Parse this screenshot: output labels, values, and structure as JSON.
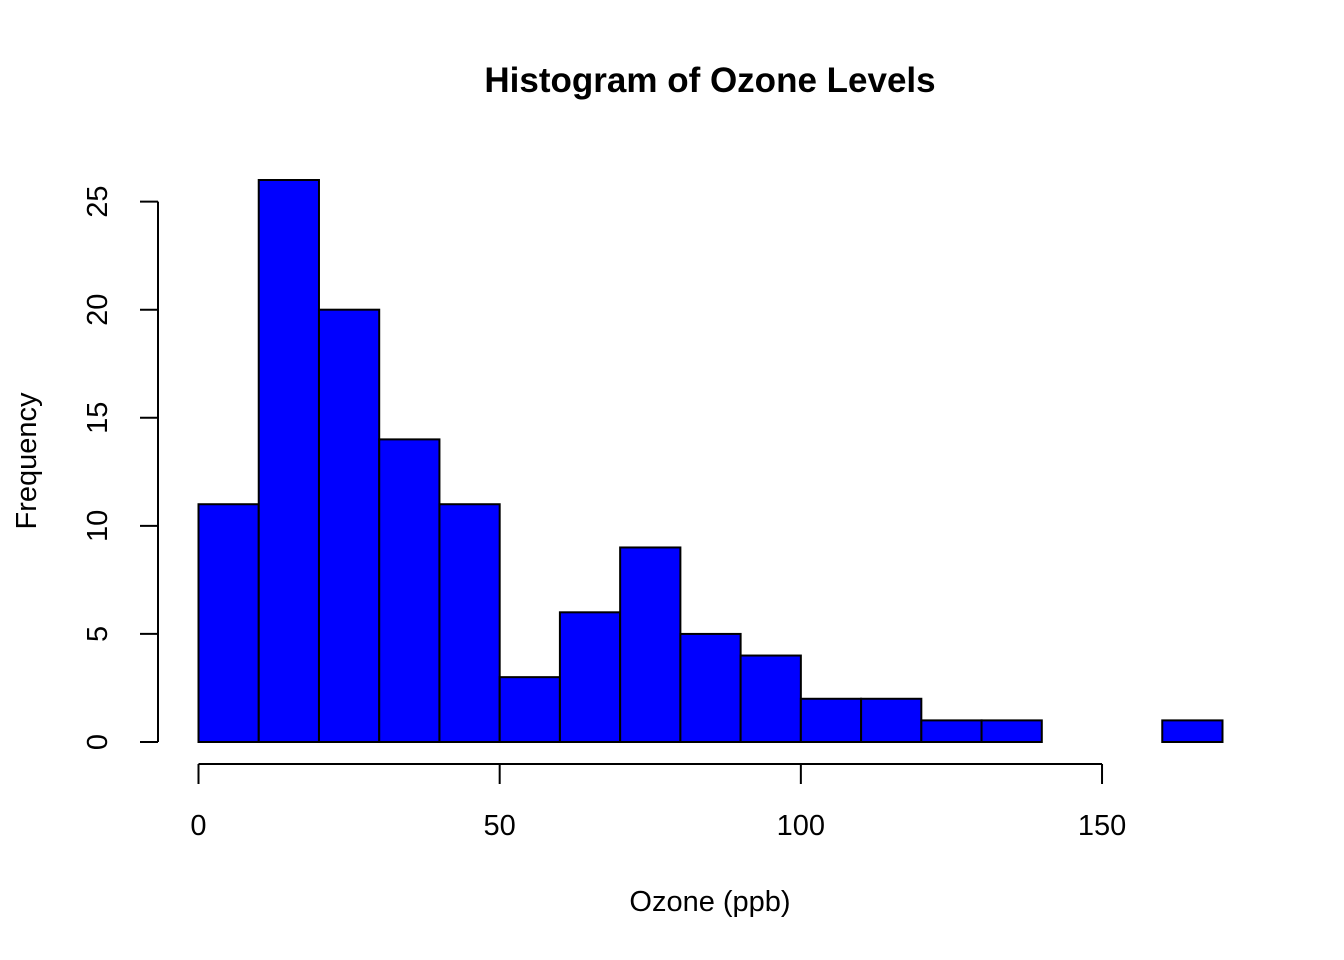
{
  "chart_data": {
    "type": "bar",
    "title": "Histogram of Ozone Levels",
    "xlabel": "Ozone (ppb)",
    "ylabel": "Frequency",
    "bin_edges": [
      0,
      10,
      20,
      30,
      40,
      50,
      60,
      70,
      80,
      90,
      100,
      110,
      120,
      130,
      140,
      150,
      160,
      170
    ],
    "values": [
      11,
      26,
      20,
      14,
      11,
      3,
      6,
      9,
      5,
      4,
      2,
      2,
      1,
      1,
      0,
      0,
      1
    ],
    "xlim": [
      0,
      170
    ],
    "ylim": [
      0,
      26
    ],
    "x_ticks": [
      0,
      50,
      100,
      150
    ],
    "x_tick_labels": [
      "0",
      "50",
      "100",
      "150"
    ],
    "y_ticks": [
      0,
      5,
      10,
      15,
      20,
      25
    ],
    "y_tick_labels": [
      "0",
      "5",
      "10",
      "15",
      "20",
      "25"
    ],
    "bar_color": "#0000ff",
    "bar_edge_color": "#000000",
    "grid": false,
    "legend": "none"
  }
}
